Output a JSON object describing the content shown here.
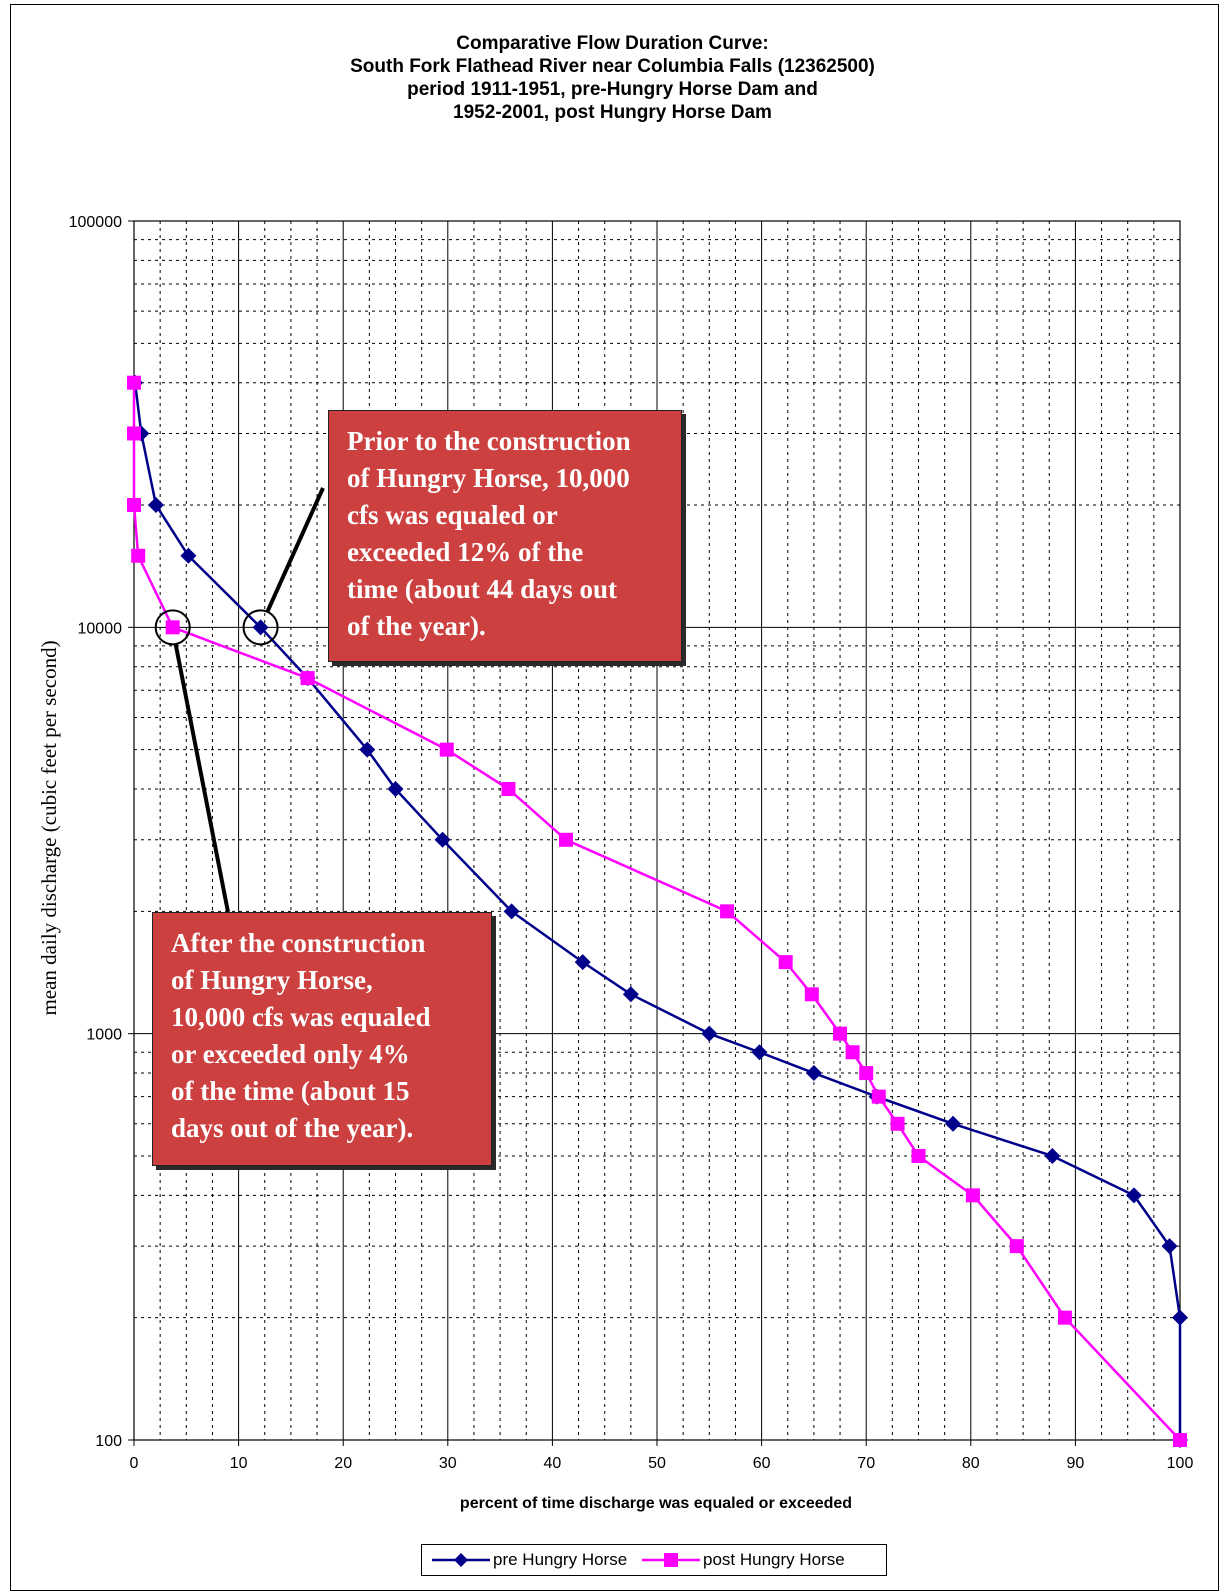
{
  "chart_data": {
    "type": "line",
    "title_lines": [
      "Comparative Flow Duration Curve:",
      "South Fork Flathead River near Columbia Falls (12362500)",
      "period 1911-1951, pre-Hungry Horse Dam and",
      "1952-2001, post Hungry Horse Dam"
    ],
    "xlabel": "percent of time discharge was equaled or exceeded",
    "ylabel": "mean daily discharge (cubic feet per second)",
    "xlim": [
      0,
      100
    ],
    "ylim": [
      100,
      100000
    ],
    "yscale": "log",
    "x_ticks": [
      "0",
      "10",
      "20",
      "30",
      "40",
      "50",
      "60",
      "70",
      "80",
      "90",
      "100"
    ],
    "y_ticks": [
      "100",
      "1000",
      "10000",
      "100000"
    ],
    "grid": true,
    "legend_position": "bottom",
    "series": [
      {
        "name": "pre Hungry Horse",
        "color": "#00008b",
        "marker": "diamond",
        "points": [
          [
            0.1,
            40000
          ],
          [
            0.7,
            30000
          ],
          [
            2.1,
            20000
          ],
          [
            5.2,
            15000
          ],
          [
            12.1,
            10000
          ],
          [
            16.6,
            7500
          ],
          [
            22.3,
            5000
          ],
          [
            25.0,
            4000
          ],
          [
            29.5,
            3000
          ],
          [
            36.1,
            2000
          ],
          [
            42.9,
            1500
          ],
          [
            47.5,
            1250
          ],
          [
            55.0,
            1000
          ],
          [
            59.8,
            900
          ],
          [
            65.0,
            800
          ],
          [
            71.0,
            700
          ],
          [
            78.3,
            600
          ],
          [
            87.8,
            500
          ],
          [
            95.6,
            400
          ],
          [
            99.0,
            300
          ],
          [
            100.0,
            200
          ],
          [
            100.0,
            100
          ]
        ]
      },
      {
        "name": "post Hungry Horse",
        "color": "#ff00ff",
        "marker": "square",
        "points": [
          [
            0.0,
            40000
          ],
          [
            0.0,
            30000
          ],
          [
            0.0,
            20000
          ],
          [
            0.4,
            15000
          ],
          [
            3.7,
            10000
          ],
          [
            16.6,
            7500
          ],
          [
            29.9,
            5000
          ],
          [
            35.8,
            4000
          ],
          [
            41.3,
            3000
          ],
          [
            56.7,
            2000
          ],
          [
            62.3,
            1500
          ],
          [
            64.8,
            1250
          ],
          [
            67.5,
            1000
          ],
          [
            68.7,
            900
          ],
          [
            70.0,
            800
          ],
          [
            71.2,
            700
          ],
          [
            73.0,
            600
          ],
          [
            75.0,
            500
          ],
          [
            80.2,
            400
          ],
          [
            84.4,
            300
          ],
          [
            89.0,
            200
          ],
          [
            100.0,
            100
          ]
        ]
      }
    ],
    "annotations": [
      "Prior to the construction of Hungry Horse, 10,000 cfs was equaled or exceeded 12% of the time (about 44 days out of the year).",
      "After the construction of Hungry Horse, 10,000 cfs was equaled or exceeded only 4% of the time (about 15 days out of the year)."
    ]
  },
  "callouts": {
    "pre_lines": [
      "Prior to the construction",
      "of Hungry Horse, 10,000",
      "cfs was equaled or",
      "exceeded 12% of the",
      "time (about 44 days out",
      "of the year)."
    ],
    "post_lines": [
      "After the construction",
      "of Hungry Horse,",
      "10,000 cfs was equaled",
      "or exceeded only 4%",
      "of the time (about 15",
      "days out of the year)."
    ]
  },
  "legend": {
    "pre_label": "pre Hungry Horse",
    "post_label": "post Hungry Horse"
  }
}
